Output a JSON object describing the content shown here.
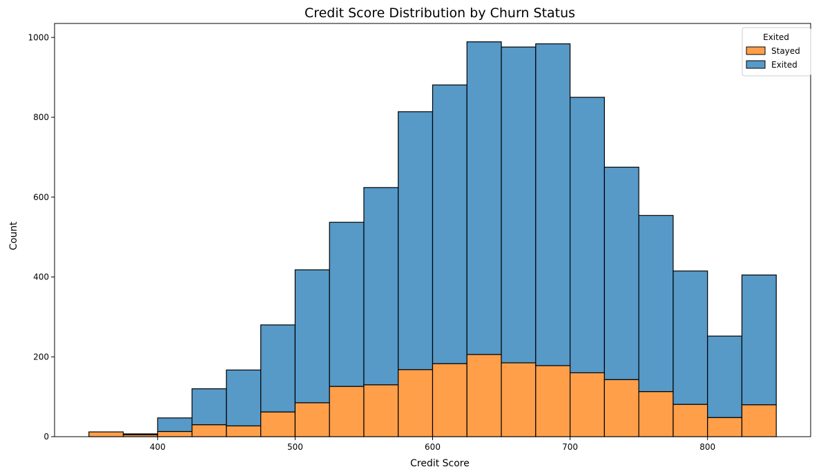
{
  "chart_data": {
    "type": "bar",
    "stacked": true,
    "title": "Credit Score Distribution by Churn Status",
    "xlabel": "Credit Score",
    "ylabel": "Count",
    "xlim": [
      325,
      875
    ],
    "ylim": [
      0,
      1035
    ],
    "xticks": [
      400,
      500,
      600,
      700,
      800
    ],
    "yticks": [
      0,
      200,
      400,
      600,
      800,
      1000
    ],
    "bin_edges": [
      350,
      375,
      400,
      425,
      450,
      475,
      500,
      525,
      550,
      575,
      600,
      625,
      650,
      675,
      700,
      725,
      750,
      775,
      800,
      825,
      850
    ],
    "series": [
      {
        "name": "Stayed",
        "color": "#ff9f4a",
        "values": [
          12,
          5,
          13,
          30,
          27,
          62,
          85,
          126,
          130,
          168,
          183,
          206,
          185,
          178,
          160,
          143,
          113,
          81,
          48,
          80
        ]
      },
      {
        "name": "Exited",
        "color": "#5799c7",
        "values": [
          0,
          2,
          34,
          90,
          140,
          218,
          333,
          411,
          494,
          646,
          698,
          783,
          791,
          806,
          690,
          532,
          441,
          334,
          204,
          325
        ]
      }
    ],
    "legend": {
      "title": "Exited",
      "placement": "top-right",
      "entries": [
        "Stayed",
        "Exited"
      ]
    },
    "grid": false
  }
}
